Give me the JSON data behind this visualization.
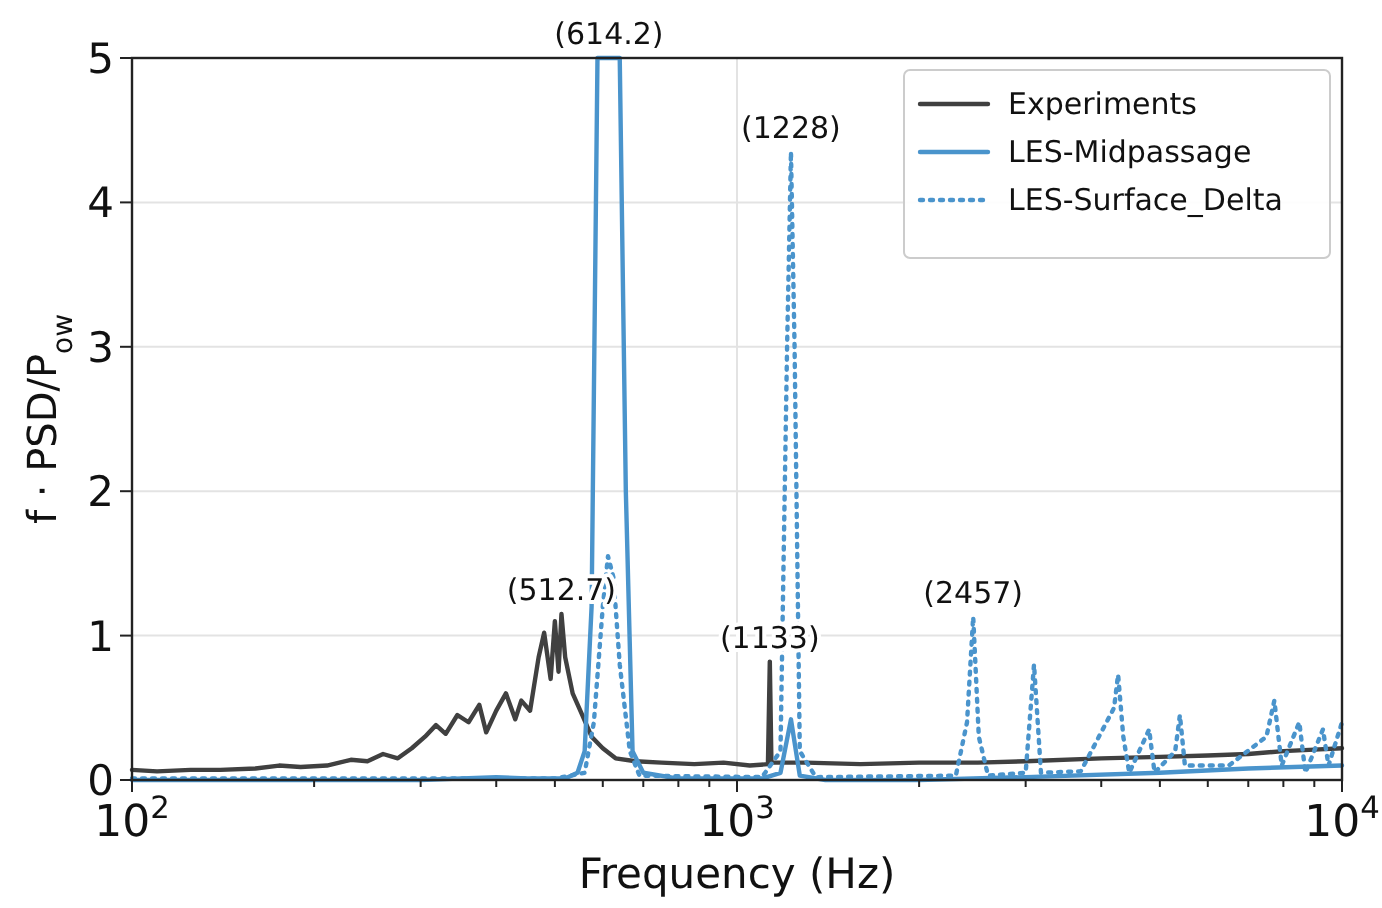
{
  "chart_data": {
    "type": "line",
    "xlabel": "Frequency (Hz)",
    "ylabel": "f · PSD/P$_{ow}$",
    "log": "x",
    "grid": true,
    "legend": "top right",
    "marker": "none",
    "xlim": [
      100,
      10000
    ],
    "ylim": [
      0,
      5
    ],
    "xticks": [
      {
        "value": 100,
        "label": "10$^{2}$"
      },
      {
        "value": 200,
        "label": null
      },
      {
        "value": 300,
        "label": null
      },
      {
        "value": 400,
        "label": null
      },
      {
        "value": 500,
        "label": null
      },
      {
        "value": 600,
        "label": null
      },
      {
        "value": 700,
        "label": null
      },
      {
        "value": 800,
        "label": null
      },
      {
        "value": 900,
        "label": null
      },
      {
        "value": 1000,
        "label": "10$^{3}$"
      },
      {
        "value": 2000,
        "label": null
      },
      {
        "value": 3000,
        "label": null
      },
      {
        "value": 4000,
        "label": null
      },
      {
        "value": 5000,
        "label": null
      },
      {
        "value": 6000,
        "label": null
      },
      {
        "value": 7000,
        "label": null
      },
      {
        "value": 8000,
        "label": null
      },
      {
        "value": 9000,
        "label": null
      },
      {
        "value": 10000,
        "label": "10$^{4}$"
      }
    ],
    "yticks": [
      0,
      1,
      2,
      3,
      4,
      5
    ],
    "series": [
      {
        "name": "Experiments",
        "color": "#404040",
        "line_style": "solid",
        "x": [
          100,
          110,
          125,
          140,
          160,
          175,
          190,
          210,
          230,
          245,
          260,
          275,
          290,
          305,
          318,
          330,
          345,
          360,
          375,
          385,
          400,
          415,
          430,
          440,
          455,
          470,
          480,
          492,
          500,
          507,
          512.7,
          520,
          535,
          555,
          575,
          600,
          630,
          680,
          750,
          850,
          950,
          1050,
          1125,
          1133,
          1140,
          1300,
          1600,
          2000,
          2500,
          3000,
          4000,
          5000,
          6000,
          7000,
          8000,
          9000,
          10000
        ],
        "values": [
          0.07,
          0.06,
          0.07,
          0.07,
          0.08,
          0.1,
          0.09,
          0.1,
          0.14,
          0.13,
          0.18,
          0.15,
          0.22,
          0.3,
          0.38,
          0.32,
          0.45,
          0.4,
          0.52,
          0.33,
          0.48,
          0.6,
          0.42,
          0.55,
          0.48,
          0.85,
          1.02,
          0.7,
          1.1,
          0.75,
          1.15,
          0.85,
          0.6,
          0.45,
          0.3,
          0.22,
          0.15,
          0.13,
          0.12,
          0.11,
          0.12,
          0.1,
          0.11,
          0.82,
          0.12,
          0.12,
          0.11,
          0.12,
          0.12,
          0.13,
          0.15,
          0.16,
          0.17,
          0.18,
          0.2,
          0.21,
          0.22
        ]
      },
      {
        "name": "LES-Midpassage",
        "color": "#4a94cc",
        "line_style": "solid",
        "x": [
          100,
          300,
          400,
          450,
          520,
          545,
          560,
          575,
          588,
          640,
          655,
          672,
          700,
          800,
          1100,
          1180,
          1228,
          1270,
          1400,
          2000,
          3000,
          5000,
          7000,
          10000
        ],
        "values": [
          0,
          0,
          0.02,
          0.01,
          0.01,
          0.05,
          0.2,
          1.2,
          5,
          5,
          2,
          0.2,
          0.05,
          0.01,
          0.01,
          0.05,
          0.42,
          0.03,
          0,
          0,
          0.02,
          0.05,
          0.08,
          0.1
        ]
      },
      {
        "name": "LES-Surface_Delta",
        "color": "#4a94cc",
        "line_style": "dotted",
        "x": [
          100,
          500,
          560,
          580,
          600,
          612,
          625,
          640,
          665,
          690,
          1100,
          1180,
          1210,
          1228,
          1245,
          1270,
          1350,
          2300,
          2400,
          2457,
          2510,
          2600,
          3000,
          3097,
          3180,
          3700,
          4200,
          4265,
          4350,
          4450,
          4800,
          4900,
          5300,
          5396,
          5500,
          6500,
          7500,
          7730,
          7950,
          8500,
          8700,
          9300,
          9500,
          10000
        ],
        "values": [
          0.01,
          0.01,
          0.05,
          0.4,
          1.2,
          1.55,
          1.4,
          0.8,
          0.2,
          0.03,
          0.02,
          0.2,
          3.0,
          4.35,
          3.0,
          0.2,
          0.02,
          0.03,
          0.4,
          1.13,
          0.3,
          0.03,
          0.05,
          0.8,
          0.05,
          0.06,
          0.5,
          0.73,
          0.3,
          0.05,
          0.35,
          0.05,
          0.2,
          0.45,
          0.1,
          0.1,
          0.3,
          0.55,
          0.1,
          0.4,
          0.05,
          0.35,
          0.1,
          0.4
        ]
      }
    ],
    "annotations": [
      {
        "text": "(614.2)",
        "x": 614.2,
        "y": 5
      },
      {
        "text": "(512.7)",
        "x": 512.7,
        "y": 1.15
      },
      {
        "text": "(1133)",
        "x": 1133,
        "y": 0.82
      },
      {
        "text": "(1228)",
        "x": 1228,
        "y": 4.35
      },
      {
        "text": "(2457)",
        "x": 2457,
        "y": 1.13
      }
    ]
  }
}
